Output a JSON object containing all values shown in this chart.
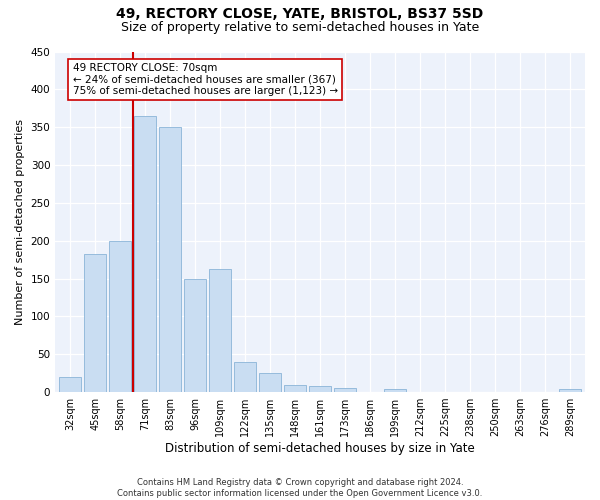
{
  "title": "49, RECTORY CLOSE, YATE, BRISTOL, BS37 5SD",
  "subtitle": "Size of property relative to semi-detached houses in Yate",
  "xlabel": "Distribution of semi-detached houses by size in Yate",
  "ylabel": "Number of semi-detached properties",
  "categories": [
    "32sqm",
    "45sqm",
    "58sqm",
    "71sqm",
    "83sqm",
    "96sqm",
    "109sqm",
    "122sqm",
    "135sqm",
    "148sqm",
    "161sqm",
    "173sqm",
    "186sqm",
    "199sqm",
    "212sqm",
    "225sqm",
    "238sqm",
    "250sqm",
    "263sqm",
    "276sqm",
    "289sqm"
  ],
  "values": [
    20,
    183,
    200,
    365,
    350,
    150,
    163,
    40,
    25,
    10,
    8,
    5,
    0,
    4,
    0,
    0,
    0,
    0,
    0,
    0,
    4
  ],
  "bar_color": "#c9ddf2",
  "bar_edge_color": "#8ab4d8",
  "property_bin_index": 3,
  "annotation_title": "49 RECTORY CLOSE: 70sqm",
  "annotation_line1": "← 24% of semi-detached houses are smaller (367)",
  "annotation_line2": "75% of semi-detached houses are larger (1,123) →",
  "vline_color": "#cc0000",
  "annotation_box_facecolor": "#ffffff",
  "annotation_box_edgecolor": "#cc0000",
  "footer_line1": "Contains HM Land Registry data © Crown copyright and database right 2024.",
  "footer_line2": "Contains public sector information licensed under the Open Government Licence v3.0.",
  "ylim": [
    0,
    450
  ],
  "yticks": [
    0,
    50,
    100,
    150,
    200,
    250,
    300,
    350,
    400,
    450
  ],
  "background_color": "#edf2fb",
  "title_fontsize": 10,
  "subtitle_fontsize": 9,
  "tick_fontsize": 7,
  "ylabel_fontsize": 8,
  "xlabel_fontsize": 8.5,
  "footer_fontsize": 6,
  "annotation_fontsize": 7.5
}
